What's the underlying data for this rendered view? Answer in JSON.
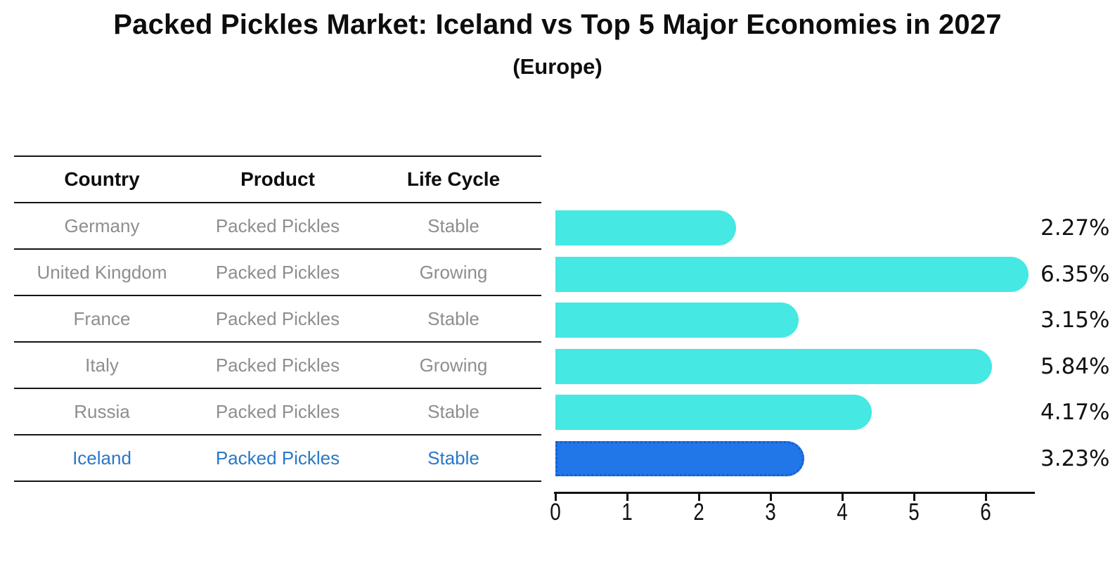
{
  "title": "Packed Pickles Market: Iceland vs Top 5 Major Economies in 2027",
  "subtitle": "(Europe)",
  "table": {
    "headers": [
      "Country",
      "Product",
      "Life Cycle"
    ],
    "rows": [
      {
        "country": "Germany",
        "product": "Packed Pickles",
        "life_cycle": "Stable"
      },
      {
        "country": "United Kingdom",
        "product": "Packed Pickles",
        "life_cycle": "Growing"
      },
      {
        "country": "France",
        "product": "Packed Pickles",
        "life_cycle": "Stable"
      },
      {
        "country": "Italy",
        "product": "Packed Pickles",
        "life_cycle": "Growing"
      },
      {
        "country": "Russia",
        "product": "Packed Pickles",
        "life_cycle": "Stable"
      },
      {
        "country": "Iceland",
        "product": "Packed Pickles",
        "life_cycle": "Stable"
      }
    ],
    "highlighted_row": "Iceland"
  },
  "chart_data": {
    "type": "bar",
    "orientation": "horizontal",
    "title": "Packed Pickles Market: Iceland vs Top 5 Major Economies in 2027",
    "subtitle": "(Europe)",
    "categories": [
      "Germany",
      "United Kingdom",
      "France",
      "Italy",
      "Russia",
      "Iceland"
    ],
    "values": [
      2.27,
      6.35,
      3.15,
      5.84,
      4.17,
      3.23
    ],
    "value_labels": [
      "2.27%",
      "6.35%",
      "3.15%",
      "5.84%",
      "4.17%",
      "3.23%"
    ],
    "x_ticks": [
      "0",
      "1",
      "2",
      "3",
      "4",
      "5",
      "6"
    ],
    "xlim": [
      0,
      6.7
    ],
    "grid": false,
    "legend": false,
    "highlight_index": 5,
    "bar_color": "#45e8e3",
    "highlight_bar_color": "#2176e8",
    "highlight_border_color": "#135fd0",
    "axis_color": "#111111",
    "table_text_color": "#8e8e8e",
    "highlight_text_color": "#2878c8"
  }
}
